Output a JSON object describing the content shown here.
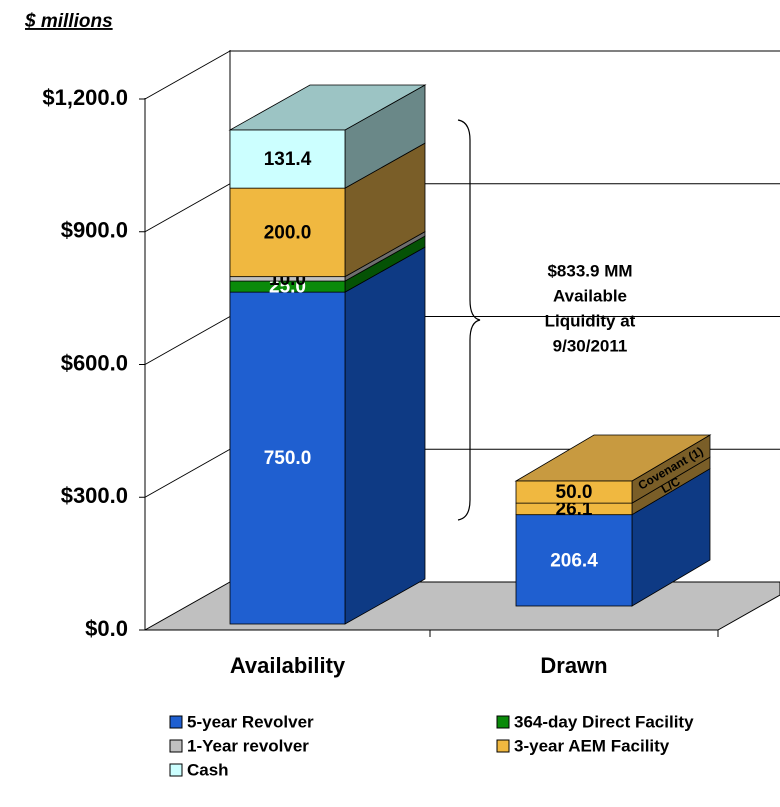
{
  "chart_data": {
    "type": "bar3d_stacked",
    "ylabel": "$ millions",
    "categories": [
      "Availability",
      "Drawn"
    ],
    "ylim": [
      0,
      1200
    ],
    "yticks": [
      {
        "value": 0,
        "label": "$0.0"
      },
      {
        "value": 300,
        "label": "$300.0"
      },
      {
        "value": 600,
        "label": "$600.0"
      },
      {
        "value": 900,
        "label": "$900.0"
      },
      {
        "value": 1200,
        "label": "$1,200.0"
      }
    ],
    "grid": true,
    "series": [
      {
        "name": "5-year Revolver",
        "color": "#1f5fd0",
        "side_color": "#0e3a84",
        "top_color": "#3f7fe0",
        "text_color": "#ffffff",
        "values": [
          750.0,
          206.4
        ],
        "value_labels": [
          "750.0",
          "206.4"
        ]
      },
      {
        "name": "364-day Direct Facility",
        "color": "#0a8a0a",
        "side_color": "#055205",
        "top_color": "#2aa02a",
        "text_color": "#ffffff",
        "values": [
          25.0,
          null
        ],
        "value_labels": [
          "25.0",
          null
        ]
      },
      {
        "name": "1-Year revolver",
        "color": "#c0c0c0",
        "side_color": "#6e6e6e",
        "top_color": "#d8d8d8",
        "text_color": "#000000",
        "values": [
          10.0,
          null
        ],
        "value_labels": [
          "10.0",
          null
        ]
      },
      {
        "name": "3-year AEM Facility",
        "color": "#f0b840",
        "side_color": "#7a5e28",
        "top_color": "#c89a40",
        "text_color": "#000000",
        "values": [
          200.0,
          26.1
        ],
        "value_labels": [
          "200.0",
          "26.1"
        ],
        "side_labels": [
          null,
          "L/C"
        ]
      },
      {
        "name": "Covenant (1)",
        "color": "#f0b840",
        "side_color": "#7a5e28",
        "top_color": "#c89a40",
        "text_color": "#000000",
        "values": [
          null,
          50.0
        ],
        "value_labels": [
          null,
          "50.0"
        ],
        "in_legend": false,
        "side_labels": [
          null,
          "Covenant (1)"
        ]
      },
      {
        "name": "Cash",
        "color": "#ccffff",
        "side_color": "#6a8888",
        "top_color": "#9cc4c4",
        "text_color": "#000000",
        "values": [
          131.4,
          null
        ],
        "value_labels": [
          "131.4",
          null
        ]
      }
    ],
    "annotation": [
      "$833.9 MM",
      "Available",
      "Liquidity at",
      "9/30/2011"
    ]
  }
}
